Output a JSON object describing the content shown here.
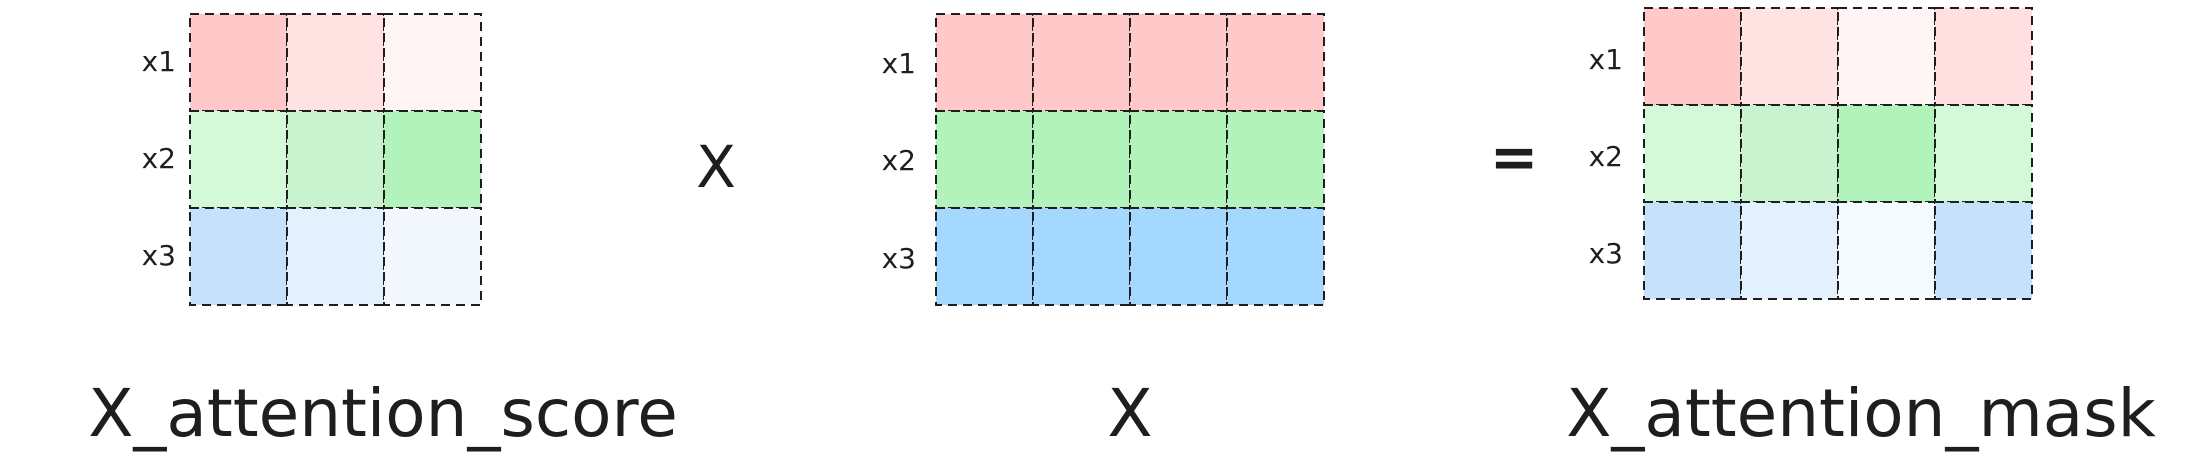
{
  "row_labels": [
    "x1",
    "x2",
    "x3"
  ],
  "operators": {
    "multiply": "X",
    "equals": "="
  },
  "matrices": {
    "attention_score": {
      "caption": "X_attention_score",
      "rows": [
        [
          "#ffc9c9",
          "#ffe3e3",
          "#fff5f5"
        ],
        [
          "#d3f9d8",
          "#c9f2cf",
          "#b2f2bb"
        ],
        [
          "#c5e1fb",
          "#e3f1fe",
          "#f2f8fe"
        ]
      ]
    },
    "x": {
      "caption": "X",
      "rows": [
        [
          "#ffc9c9",
          "#ffc9c9",
          "#ffc9c9",
          "#ffc9c9"
        ],
        [
          "#b2f2bb",
          "#b2f2bb",
          "#b2f2bb",
          "#b2f2bb"
        ],
        [
          "#a5d8ff",
          "#a5d8ff",
          "#a5d8ff",
          "#a5d8ff"
        ]
      ]
    },
    "attention_mask": {
      "caption": "X_attention_mask",
      "rows": [
        [
          "#ffc9c9",
          "#ffe3e3",
          "#fff5f5",
          "#ffdfdf"
        ],
        [
          "#d3f9d8",
          "#c9f2cf",
          "#b2f2bb",
          "#d3f9d8"
        ],
        [
          "#c5e1fb",
          "#e3f1fe",
          "#f6fbff",
          "#c5e1fb"
        ]
      ]
    }
  }
}
